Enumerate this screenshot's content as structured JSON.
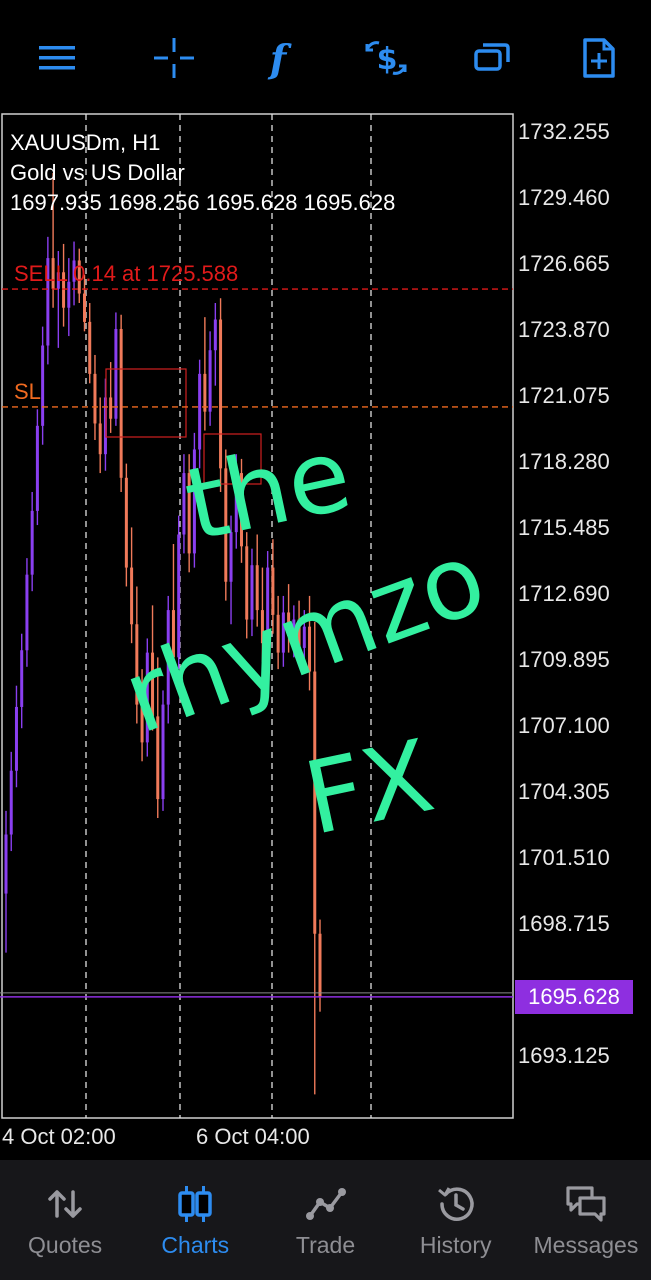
{
  "toolbar": {
    "buttons": [
      {
        "name": "menu"
      },
      {
        "name": "crosshair"
      },
      {
        "name": "indicators"
      },
      {
        "name": "symbols"
      },
      {
        "name": "windows"
      },
      {
        "name": "new-order"
      }
    ],
    "accent_color": "#2d8cf0"
  },
  "chart_info": {
    "symbol_timeframe": "XAUUSDm, H1",
    "description": "Gold vs US Dollar",
    "ohlc": "1697.935 1698.256 1695.628 1695.628"
  },
  "trade_lines": {
    "sell_label": "SELL 0.14 at 1725.588",
    "sell_price": 1725.588,
    "sell_color": "#e01a1a",
    "sl_label": "SL",
    "sl_price": 1720.6,
    "sl_color": "#f06a20"
  },
  "price_axis": {
    "labels": [
      "1732.255",
      "1729.460",
      "1726.665",
      "1723.870",
      "1721.075",
      "1718.280",
      "1715.485",
      "1712.690",
      "1709.895",
      "1707.100",
      "1704.305",
      "1701.510",
      "1698.715",
      "1693.125"
    ],
    "current_price": "1695.628",
    "current_price_color": "#8e2fe0"
  },
  "time_axis": {
    "labels": [
      "4 Oct 02:00",
      "6 Oct 04:00"
    ]
  },
  "watermark": {
    "line1": "the",
    "line2": "rhymzo",
    "line3": "FX",
    "color": "#33f0a0"
  },
  "chart_data": {
    "type": "candlestick",
    "ylim": [
      1690.5,
      1733.0
    ],
    "bull_color": "#8a3ff0",
    "bear_color": "#f07a5a",
    "candles": [
      [
        1700.0,
        1703.5,
        1697.5,
        1702.5
      ],
      [
        1702.5,
        1706.0,
        1701.8,
        1705.2
      ],
      [
        1705.2,
        1708.8,
        1704.5,
        1707.9
      ],
      [
        1707.9,
        1711.0,
        1707.0,
        1710.3
      ],
      [
        1710.3,
        1714.2,
        1709.6,
        1713.5
      ],
      [
        1713.5,
        1717.0,
        1712.8,
        1716.2
      ],
      [
        1716.2,
        1720.5,
        1715.6,
        1719.8
      ],
      [
        1719.8,
        1724.0,
        1719.0,
        1723.2
      ],
      [
        1723.2,
        1727.8,
        1722.4,
        1726.9
      ],
      [
        1726.9,
        1730.5,
        1724.8,
        1725.6
      ],
      [
        1725.6,
        1727.2,
        1723.1,
        1726.3
      ],
      [
        1726.3,
        1727.5,
        1724.0,
        1724.8
      ],
      [
        1724.8,
        1726.9,
        1723.6,
        1725.9
      ],
      [
        1725.9,
        1727.6,
        1724.9,
        1726.8
      ],
      [
        1726.8,
        1727.3,
        1725.0,
        1725.4
      ],
      [
        1725.4,
        1726.2,
        1723.8,
        1724.2
      ],
      [
        1724.2,
        1725.0,
        1721.6,
        1722.0
      ],
      [
        1722.0,
        1722.8,
        1719.2,
        1719.9
      ],
      [
        1719.9,
        1721.0,
        1717.8,
        1718.6
      ],
      [
        1718.6,
        1721.8,
        1717.9,
        1721.0
      ],
      [
        1721.0,
        1722.5,
        1719.5,
        1720.1
      ],
      [
        1720.1,
        1724.6,
        1719.8,
        1723.9
      ],
      [
        1723.9,
        1724.5,
        1717.0,
        1717.6
      ],
      [
        1717.6,
        1718.2,
        1713.0,
        1713.8
      ],
      [
        1713.8,
        1715.5,
        1710.6,
        1711.4
      ],
      [
        1711.4,
        1713.0,
        1707.2,
        1708.0
      ],
      [
        1708.0,
        1709.5,
        1705.6,
        1706.4
      ],
      [
        1706.4,
        1710.8,
        1705.8,
        1710.2
      ],
      [
        1710.2,
        1712.2,
        1706.9,
        1707.5
      ],
      [
        1707.5,
        1710.0,
        1703.2,
        1704.0
      ],
      [
        1704.0,
        1708.6,
        1703.5,
        1708.0
      ],
      [
        1708.0,
        1712.6,
        1707.2,
        1712.0
      ],
      [
        1712.0,
        1714.8,
        1709.2,
        1710.0
      ],
      [
        1710.0,
        1716.0,
        1709.5,
        1715.2
      ],
      [
        1715.2,
        1718.6,
        1714.4,
        1717.8
      ],
      [
        1717.8,
        1718.6,
        1713.6,
        1714.4
      ],
      [
        1714.4,
        1719.5,
        1713.8,
        1718.8
      ],
      [
        1718.8,
        1722.6,
        1718.0,
        1722.0
      ],
      [
        1722.0,
        1724.4,
        1719.6,
        1720.4
      ],
      [
        1720.4,
        1723.8,
        1719.8,
        1723.0
      ],
      [
        1723.0,
        1725.0,
        1721.5,
        1724.3
      ],
      [
        1724.3,
        1725.2,
        1717.0,
        1718.0
      ],
      [
        1718.0,
        1718.8,
        1712.4,
        1713.2
      ],
      [
        1713.2,
        1716.0,
        1711.4,
        1715.3
      ],
      [
        1715.3,
        1718.6,
        1714.6,
        1717.8
      ],
      [
        1717.8,
        1718.4,
        1714.0,
        1714.7
      ],
      [
        1714.7,
        1715.3,
        1710.8,
        1711.6
      ],
      [
        1711.6,
        1714.6,
        1710.9,
        1713.9
      ],
      [
        1713.9,
        1715.2,
        1711.3,
        1712.0
      ],
      [
        1712.0,
        1713.8,
        1709.8,
        1710.6
      ],
      [
        1710.6,
        1714.5,
        1710.0,
        1713.8
      ],
      [
        1713.8,
        1715.0,
        1711.0,
        1711.8
      ],
      [
        1711.8,
        1712.6,
        1709.5,
        1710.2
      ],
      [
        1710.2,
        1712.6,
        1709.6,
        1711.9
      ],
      [
        1711.9,
        1713.1,
        1710.2,
        1710.9
      ],
      [
        1710.9,
        1712.2,
        1710.0,
        1711.6
      ],
      [
        1711.6,
        1712.4,
        1709.8,
        1710.4
      ],
      [
        1710.4,
        1712.0,
        1709.7,
        1711.3
      ],
      [
        1711.3,
        1712.6,
        1708.6,
        1709.4
      ],
      [
        1709.4,
        1711.5,
        1691.5,
        1698.3
      ],
      [
        1698.3,
        1698.9,
        1695.0,
        1695.6
      ]
    ]
  }
}
